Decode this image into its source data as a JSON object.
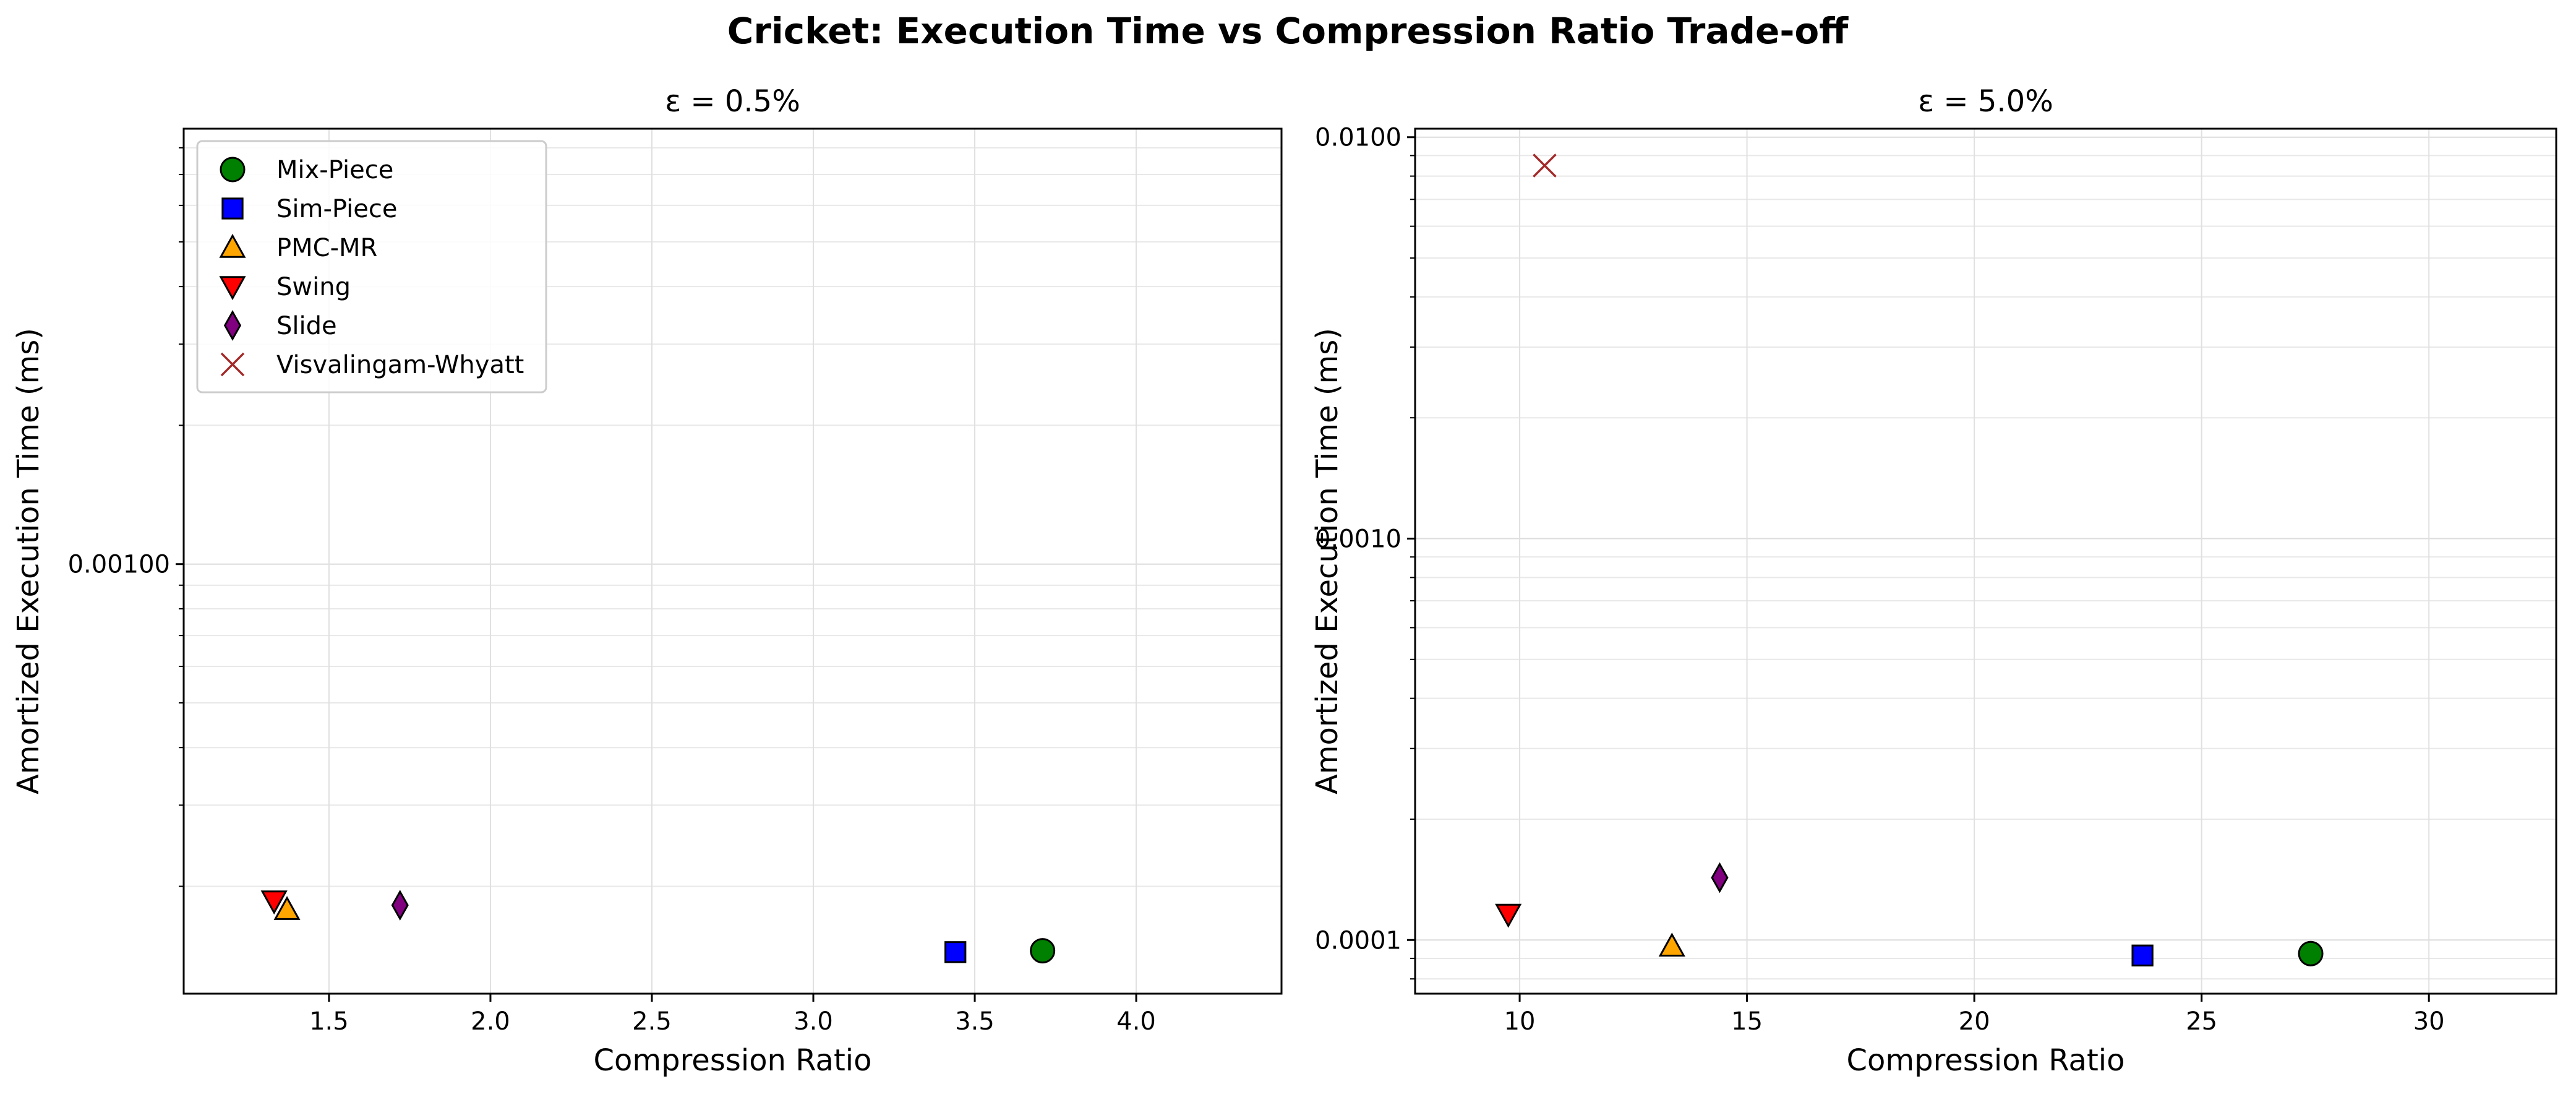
{
  "figure": {
    "title": "Cricket: Execution Time vs Compression Ratio Trade-off"
  },
  "colors": {
    "Mix-Piece": "#008000",
    "Sim-Piece": "#0000ff",
    "PMC-MR": "#ffa500",
    "Swing": "#ff0000",
    "Slide": "#800080",
    "Visvalingam-Whyatt": "#a52a2a"
  },
  "chart_data": [
    {
      "type": "scatter",
      "title": "ε = 0.5%",
      "xlabel": "Compression Ratio",
      "ylabel": "Amortized Execution Time (ms)",
      "xlim": [
        1.05,
        4.45
      ],
      "ylim": [
        0.000117,
        0.0088
      ],
      "yscale": "log",
      "grid": true,
      "legend": "top-left",
      "xticks": [
        1.5,
        2.0,
        2.5,
        3.0,
        3.5,
        4.0
      ],
      "xtick_labels": [
        "1.5",
        "2.0",
        "2.5",
        "3.0",
        "3.5",
        "4.0"
      ],
      "yticks": [
        0.001
      ],
      "ytick_labels": [
        "0.00100"
      ],
      "series": [
        {
          "name": "Mix-Piece",
          "marker": "circle",
          "x": [
            3.71
          ],
          "y": [
            0.000145
          ]
        },
        {
          "name": "Sim-Piece",
          "marker": "square",
          "x": [
            3.44
          ],
          "y": [
            0.000144
          ]
        },
        {
          "name": "PMC-MR",
          "marker": "triangle-up",
          "x": [
            1.37
          ],
          "y": [
            0.000178
          ]
        },
        {
          "name": "Swing",
          "marker": "triangle-down",
          "x": [
            1.33
          ],
          "y": [
            0.000186
          ]
        },
        {
          "name": "Slide",
          "marker": "diamond",
          "x": [
            1.72
          ],
          "y": [
            0.000182
          ]
        },
        {
          "name": "Visvalingam-Whyatt",
          "marker": "x",
          "x": [],
          "y": []
        }
      ]
    },
    {
      "type": "scatter",
      "title": "ε = 5.0%",
      "xlabel": "Compression Ratio",
      "ylabel": "Amortized Execution Time (ms)",
      "xlim": [
        7.7,
        32.8
      ],
      "ylim": [
        7.35e-05,
        0.0105
      ],
      "yscale": "log",
      "grid": true,
      "legend": "none",
      "xticks": [
        10,
        15,
        20,
        25,
        30
      ],
      "xtick_labels": [
        "10",
        "15",
        "20",
        "25",
        "30"
      ],
      "yticks": [
        0.0001,
        0.001,
        0.01
      ],
      "ytick_labels": [
        "0.0001",
        "0.0010",
        "0.0100"
      ],
      "series": [
        {
          "name": "Mix-Piece",
          "marker": "circle",
          "x": [
            27.4
          ],
          "y": [
            9.25e-05
          ]
        },
        {
          "name": "Sim-Piece",
          "marker": "square",
          "x": [
            23.7
          ],
          "y": [
            9.15e-05
          ]
        },
        {
          "name": "PMC-MR",
          "marker": "triangle-up",
          "x": [
            13.35
          ],
          "y": [
            9.65e-05
          ]
        },
        {
          "name": "Swing",
          "marker": "triangle-down",
          "x": [
            9.75
          ],
          "y": [
            0.000116
          ]
        },
        {
          "name": "Slide",
          "marker": "diamond",
          "x": [
            14.4
          ],
          "y": [
            0.000143
          ]
        },
        {
          "name": "Visvalingam-Whyatt",
          "marker": "x",
          "x": [
            10.55
          ],
          "y": [
            0.0085
          ]
        }
      ]
    }
  ]
}
